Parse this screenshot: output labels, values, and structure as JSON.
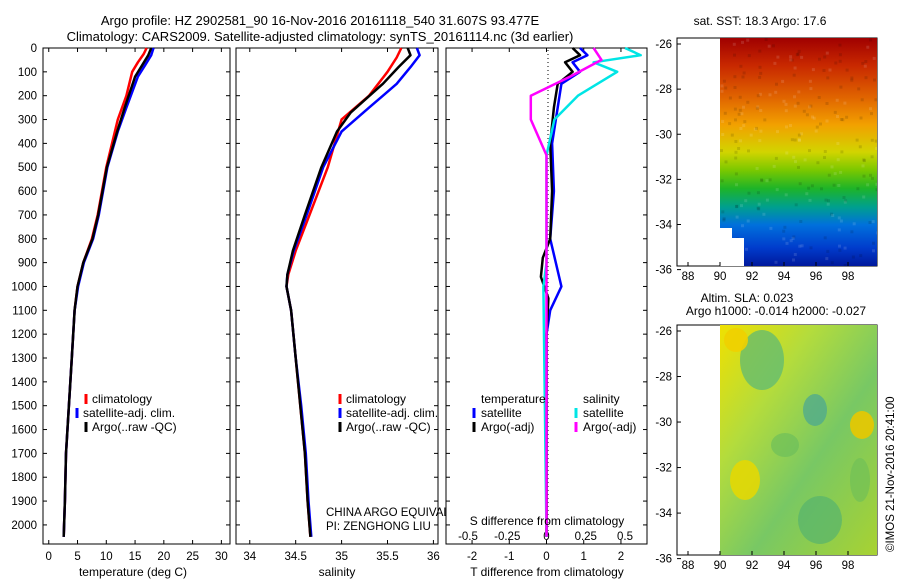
{
  "header": {
    "line1": "Argo profile: HZ 2902581_90 16-Nov-2016 20161118_540 31.607S 93.477E",
    "line2": "Climatology: CARS2009. Satellite-adjusted climatology: synTS_20161114.nc (3d earlier)"
  },
  "credit": "©IMOS 21-Nov-2016 20:41:00",
  "colors": {
    "climatology": "#ff0000",
    "satellite": "#0000ff",
    "argo": "#000000",
    "sat_salinity": "#00e5e5",
    "argo_salinity": "#ff00ff"
  },
  "depth_ticks": [
    0,
    100,
    200,
    300,
    400,
    500,
    600,
    700,
    800,
    900,
    1000,
    1100,
    1200,
    1300,
    1400,
    1500,
    1600,
    1700,
    1800,
    1900,
    2000
  ],
  "panels": {
    "temperature": {
      "xlabel": "temperature (deg C)",
      "xticks": [
        "0",
        "5",
        "10",
        "15",
        "20",
        "25",
        "30"
      ],
      "legend": [
        "climatology",
        "satellite-adj. clim.",
        "Argo(..raw -QC)"
      ]
    },
    "salinity": {
      "xlabel": "salinity",
      "xticks": [
        "34",
        "34.5",
        "35",
        "35.5",
        "36"
      ],
      "legend": [
        "climatology",
        "satellite-adj. clim.",
        "Argo(..raw -QC)"
      ],
      "note_line1": "CHINA ARGO EQUIVALENT",
      "note_line2": "PI: ZENGHONG LIU"
    },
    "difference": {
      "xlabel": "T difference from climatology",
      "xticks": [
        "-2",
        "-1",
        "0",
        "1",
        "2"
      ],
      "s_label": "S difference from climatology",
      "s_ticks": [
        "-0.5",
        "-0.25",
        "0",
        "0.25",
        "0.5"
      ],
      "legend_temp_title": "temperature",
      "legend_sal_title": "salinity",
      "legend_temp": [
        "satellite",
        "Argo(-adj)"
      ],
      "legend_sal": [
        "satellite",
        "Argo(-adj)"
      ]
    }
  },
  "maps": {
    "sst": {
      "title": "sat. SST: 18.3 Argo: 17.6",
      "lat_ticks": [
        "-26",
        "-28",
        "-30",
        "-32",
        "-34",
        "-36"
      ],
      "lon_ticks": [
        "88",
        "90",
        "92",
        "94",
        "96",
        "98"
      ]
    },
    "sla": {
      "title1": "Altim. SLA: 0.023",
      "title2": "Argo h1000: -0.014 h2000: -0.027",
      "lat_ticks": [
        "-26",
        "-28",
        "-30",
        "-32",
        "-34",
        "-36"
      ],
      "lon_ticks": [
        "88",
        "90",
        "92",
        "94",
        "96",
        "98"
      ]
    }
  },
  "chart_data": [
    {
      "type": "line",
      "xlabel": "temperature (deg C)",
      "ylabel": "",
      "xlim": [
        -1,
        31.5
      ],
      "ylim": [
        2080,
        0
      ],
      "series": [
        {
          "name": "climatology",
          "points": [
            [
              17.0,
              0
            ],
            [
              16.5,
              25
            ],
            [
              15.5,
              60
            ],
            [
              14.5,
              100
            ],
            [
              13.5,
              200
            ],
            [
              12.0,
              300
            ],
            [
              10.0,
              500
            ],
            [
              8.5,
              700
            ],
            [
              7.5,
              800
            ],
            [
              6.0,
              900
            ],
            [
              5.0,
              1000
            ],
            [
              4.5,
              1100
            ],
            [
              4.0,
              1300
            ],
            [
              3.5,
              1500
            ],
            [
              3.0,
              1700
            ],
            [
              2.8,
              1900
            ],
            [
              2.6,
              2050
            ]
          ]
        },
        {
          "name": "satellite-adj. clim.",
          "points": [
            [
              18.2,
              0
            ],
            [
              17.8,
              30
            ],
            [
              16.8,
              70
            ],
            [
              15.5,
              120
            ],
            [
              13.5,
              250
            ],
            [
              12.0,
              350
            ],
            [
              10.2,
              500
            ],
            [
              8.7,
              700
            ],
            [
              7.7,
              800
            ],
            [
              6.1,
              900
            ],
            [
              5.1,
              1000
            ],
            [
              4.5,
              1100
            ],
            [
              4.0,
              1300
            ],
            [
              3.5,
              1500
            ],
            [
              3.0,
              1700
            ],
            [
              2.8,
              1900
            ],
            [
              2.6,
              2050
            ]
          ]
        },
        {
          "name": "Argo(..raw -QC)",
          "points": [
            [
              17.8,
              0
            ],
            [
              17.3,
              30
            ],
            [
              16.3,
              70
            ],
            [
              15.0,
              120
            ],
            [
              13.2,
              250
            ],
            [
              11.9,
              350
            ],
            [
              10.1,
              500
            ],
            [
              8.6,
              700
            ],
            [
              7.6,
              800
            ],
            [
              6.0,
              900
            ],
            [
              5.0,
              1000
            ],
            [
              4.5,
              1100
            ],
            [
              4.0,
              1300
            ],
            [
              3.5,
              1500
            ],
            [
              3.0,
              1700
            ],
            [
              2.8,
              1900
            ],
            [
              2.6,
              2050
            ]
          ]
        }
      ]
    },
    {
      "type": "line",
      "xlabel": "salinity",
      "ylabel": "",
      "xlim": [
        33.85,
        36.05
      ],
      "ylim": [
        2080,
        0
      ],
      "series": [
        {
          "name": "climatology",
          "points": [
            [
              35.65,
              0
            ],
            [
              35.6,
              40
            ],
            [
              35.5,
              100
            ],
            [
              35.3,
              200
            ],
            [
              35.0,
              300
            ],
            [
              34.85,
              500
            ],
            [
              34.65,
              700
            ],
            [
              34.5,
              850
            ],
            [
              34.42,
              950
            ],
            [
              34.4,
              1000
            ],
            [
              34.45,
              1100
            ],
            [
              34.5,
              1300
            ],
            [
              34.55,
              1500
            ],
            [
              34.6,
              1700
            ],
            [
              34.63,
              1900
            ],
            [
              34.66,
              2050
            ]
          ]
        },
        {
          "name": "satellite-adj. clim.",
          "points": [
            [
              35.82,
              0
            ],
            [
              35.85,
              30
            ],
            [
              35.75,
              80
            ],
            [
              35.6,
              150
            ],
            [
              35.3,
              250
            ],
            [
              35.0,
              350
            ],
            [
              34.8,
              500
            ],
            [
              34.62,
              700
            ],
            [
              34.48,
              850
            ],
            [
              34.41,
              950
            ],
            [
              34.4,
              1000
            ],
            [
              34.45,
              1100
            ],
            [
              34.5,
              1300
            ],
            [
              34.56,
              1500
            ],
            [
              34.61,
              1700
            ],
            [
              34.64,
              1900
            ],
            [
              34.67,
              2050
            ]
          ]
        },
        {
          "name": "Argo(..raw -QC)",
          "points": [
            [
              35.72,
              0
            ],
            [
              35.75,
              30
            ],
            [
              35.62,
              80
            ],
            [
              35.45,
              150
            ],
            [
              35.1,
              270
            ],
            [
              34.95,
              350
            ],
            [
              34.78,
              500
            ],
            [
              34.6,
              700
            ],
            [
              34.47,
              850
            ],
            [
              34.41,
              950
            ],
            [
              34.4,
              1000
            ],
            [
              34.45,
              1100
            ],
            [
              34.5,
              1300
            ],
            [
              34.55,
              1500
            ],
            [
              34.6,
              1700
            ],
            [
              34.63,
              1900
            ],
            [
              34.66,
              2050
            ]
          ]
        }
      ]
    },
    {
      "type": "line",
      "xlabel": "T difference from climatology",
      "ylabel": "",
      "xlim": [
        -2.7,
        2.7
      ],
      "ylim": [
        2080,
        0
      ],
      "series": [
        {
          "name": "satellite",
          "axis": "T",
          "points": [
            [
              0.9,
              0
            ],
            [
              1.1,
              30
            ],
            [
              0.7,
              60
            ],
            [
              0.9,
              100
            ],
            [
              0.4,
              150
            ],
            [
              0.3,
              250
            ],
            [
              0.15,
              400
            ],
            [
              0.2,
              600
            ],
            [
              0.1,
              800
            ],
            [
              0.25,
              900
            ],
            [
              0.4,
              1000
            ],
            [
              0.1,
              1100
            ],
            [
              0.0,
              1200
            ],
            [
              0.0,
              2050
            ]
          ]
        },
        {
          "name": "Argo(-adj)",
          "axis": "T",
          "points": [
            [
              0.7,
              0
            ],
            [
              0.9,
              30
            ],
            [
              0.5,
              60
            ],
            [
              0.7,
              100
            ],
            [
              0.3,
              150
            ],
            [
              0.2,
              250
            ],
            [
              0.1,
              400
            ],
            [
              0.15,
              600
            ],
            [
              0.1,
              800
            ],
            [
              -0.1,
              880
            ],
            [
              -0.15,
              960
            ],
            [
              0.05,
              1050
            ],
            [
              0.0,
              1200
            ],
            [
              0.0,
              2050
            ]
          ]
        },
        {
          "name": "satellite",
          "axis": "S",
          "points": [
            [
              0.5,
              0
            ],
            [
              0.6,
              30
            ],
            [
              0.3,
              60
            ],
            [
              0.45,
              100
            ],
            [
              0.2,
              200
            ],
            [
              0.05,
              300
            ],
            [
              0.0,
              450
            ],
            [
              0.0,
              900
            ],
            [
              -0.02,
              1000
            ],
            [
              0.0,
              2050
            ]
          ]
        },
        {
          "name": "Argo(-adj)",
          "axis": "S",
          "points": [
            [
              0.3,
              0
            ],
            [
              0.35,
              50
            ],
            [
              0.15,
              120
            ],
            [
              -0.1,
              200
            ],
            [
              -0.1,
              300
            ],
            [
              0.0,
              450
            ],
            [
              0.0,
              2050
            ]
          ]
        }
      ]
    }
  ]
}
